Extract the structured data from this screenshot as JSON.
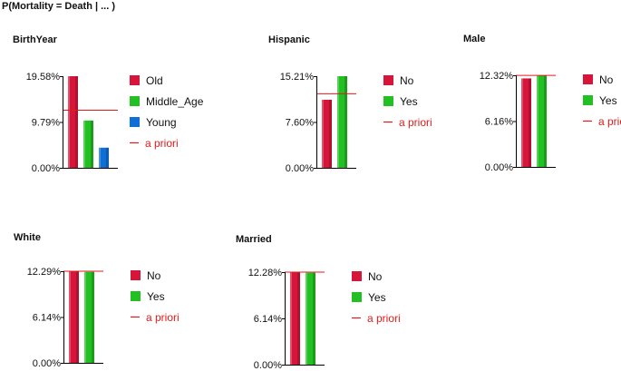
{
  "page": {
    "title": "P(Mortality = Death | ... )"
  },
  "colors": {
    "red": "#d7153a",
    "green": "#22c022",
    "blue": "#0e6fd6",
    "apriori": "#e11b1b"
  },
  "chart_data": [
    {
      "type": "bar",
      "title": "BirthYear",
      "categories": [
        "Old",
        "Middle_Age",
        "Young"
      ],
      "values": [
        19.58,
        10.1,
        4.3
      ],
      "colors": [
        "red",
        "green",
        "blue"
      ],
      "yticks": [
        "19.58%",
        "9.79%",
        "0.00%"
      ],
      "ylim": [
        0,
        19.58
      ],
      "apriori": 12.3,
      "apriori_label": "a priori",
      "legend": "right"
    },
    {
      "type": "bar",
      "title": "Hispanic",
      "categories": [
        "No",
        "Yes"
      ],
      "values": [
        11.3,
        15.21
      ],
      "colors": [
        "red",
        "green"
      ],
      "yticks": [
        "15.21%",
        "7.60%",
        "0.00%"
      ],
      "ylim": [
        0,
        15.21
      ],
      "apriori": 12.3,
      "apriori_label": "a priori",
      "legend": "right"
    },
    {
      "type": "bar",
      "title": "Male",
      "categories": [
        "No",
        "Yes"
      ],
      "values": [
        11.9,
        12.32
      ],
      "colors": [
        "red",
        "green"
      ],
      "yticks": [
        "12.32%",
        "6.16%",
        "0.00%"
      ],
      "ylim": [
        0,
        12.32
      ],
      "apriori": 12.3,
      "apriori_label": "a priori",
      "legend": "right"
    },
    {
      "type": "bar",
      "title": "White",
      "categories": [
        "No",
        "Yes"
      ],
      "values": [
        12.29,
        12.2
      ],
      "colors": [
        "red",
        "green"
      ],
      "yticks": [
        "12.29%",
        "6.14%",
        "0.00%"
      ],
      "ylim": [
        0,
        12.29
      ],
      "apriori": 12.3,
      "apriori_label": "a priori",
      "legend": "right"
    },
    {
      "type": "bar",
      "title": "Married",
      "categories": [
        "No",
        "Yes"
      ],
      "values": [
        12.28,
        12.2
      ],
      "colors": [
        "red",
        "green"
      ],
      "yticks": [
        "12.28%",
        "6.14%",
        "0.00%"
      ],
      "ylim": [
        0,
        12.28
      ],
      "apriori": 12.3,
      "apriori_label": "a priori",
      "legend": "right"
    }
  ]
}
